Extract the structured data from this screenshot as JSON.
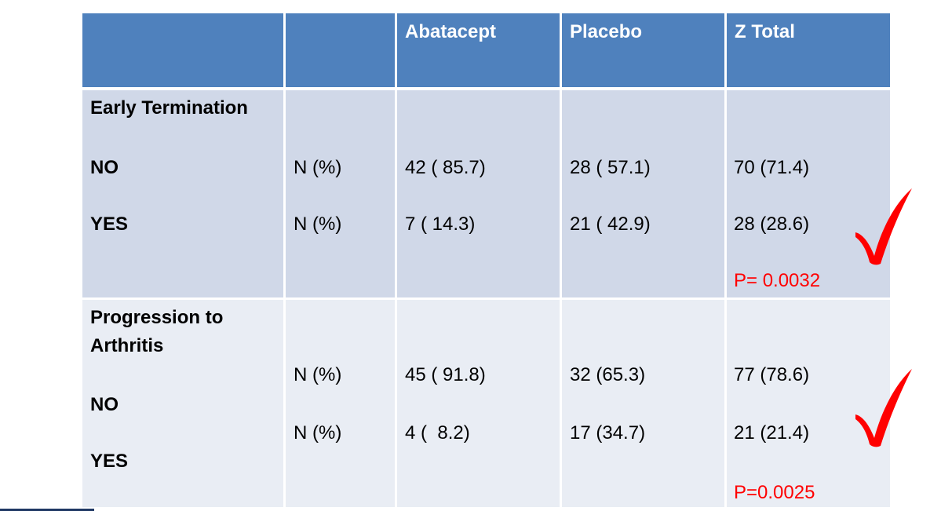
{
  "table": {
    "headers": [
      "",
      "",
      "Abatacept",
      "Placebo",
      "Z Total"
    ],
    "sections": [
      {
        "title": "Early Termination",
        "title_lines": [
          "Early Termination"
        ],
        "rows": [
          {
            "label": "NO",
            "stat": "N (%)",
            "abatacept": "42 ( 85.7)",
            "placebo": "28 ( 57.1)",
            "total": "70 (71.4)"
          },
          {
            "label": "YES",
            "stat": "N (%)",
            "abatacept": "7 ( 14.3)",
            "placebo": "21 ( 42.9)",
            "total": "28 (28.6)"
          }
        ],
        "p_value": "P= 0.0032"
      },
      {
        "title": "Progression to Arthritis",
        "title_lines": [
          "Progression to",
          "Arthritis"
        ],
        "rows": [
          {
            "label": "NO",
            "stat": "N (%)",
            "abatacept": "45 ( 91.8)",
            "placebo": "32 (65.3)",
            "total": "77 (78.6)"
          },
          {
            "label": "YES",
            "stat": "N (%)",
            "abatacept": "4 (  8.2)",
            "placebo": "17 (34.7)",
            "total": "21 (21.4)"
          }
        ],
        "p_value": "P=0.0025"
      }
    ]
  },
  "colors": {
    "header_bg": "#4f81bd",
    "band1_bg": "#d0d8e8",
    "band2_bg": "#e9edf4",
    "p_value_color": "#ff0000",
    "checkmark_color": "#ff0000"
  },
  "icons": {
    "checkmark": "red-checkmark-icon"
  }
}
